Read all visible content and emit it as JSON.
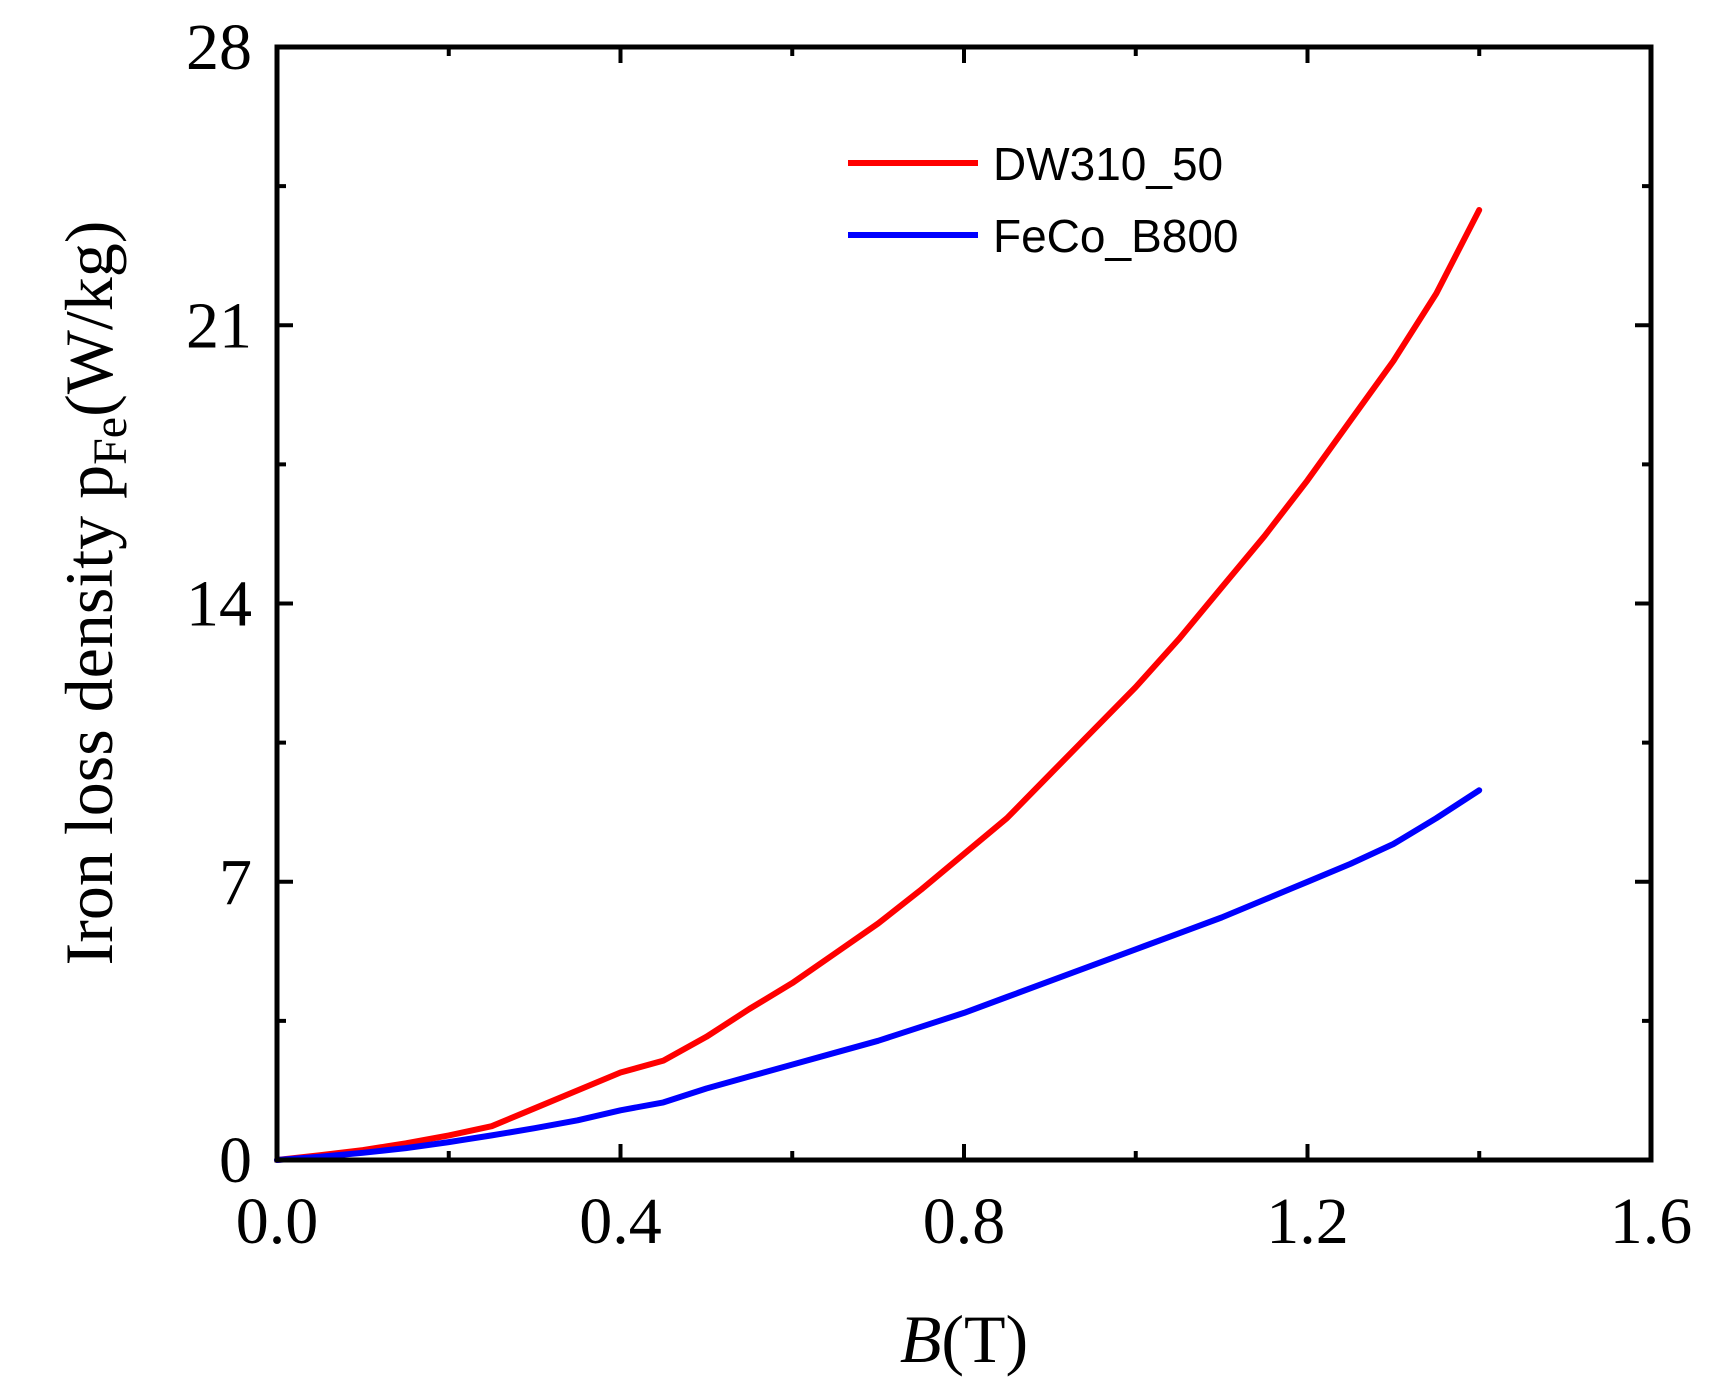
{
  "chart_data": {
    "type": "line",
    "title": "",
    "xlabel": {
      "symbol": "B",
      "unit": "(T)"
    },
    "ylabel": {
      "main": "Iron loss density p",
      "subscript": "Fe",
      "unit": "(W/kg)"
    },
    "xlim": [
      0.0,
      1.6
    ],
    "ylim": [
      0,
      28
    ],
    "x_ticks": [
      "0.0",
      "0.4",
      "0.8",
      "1.2",
      "1.6"
    ],
    "x_tick_values": [
      0.0,
      0.4,
      0.8,
      1.2,
      1.6
    ],
    "x_minor_ticks": [
      0.2,
      0.6,
      1.0,
      1.4
    ],
    "y_ticks": [
      "0",
      "7",
      "14",
      "21",
      "28"
    ],
    "y_tick_values": [
      0,
      7,
      14,
      21,
      28
    ],
    "y_minor_ticks": [
      3.5,
      10.5,
      17.5,
      24.5
    ],
    "grid": false,
    "legend_position": "top-right",
    "series": [
      {
        "name": "DW310_50",
        "color": "#ff0000",
        "x": [
          0.0,
          0.05,
          0.1,
          0.15,
          0.2,
          0.25,
          0.3,
          0.35,
          0.4,
          0.45,
          0.5,
          0.55,
          0.6,
          0.65,
          0.7,
          0.75,
          0.8,
          0.85,
          0.9,
          0.95,
          1.0,
          1.05,
          1.1,
          1.15,
          1.2,
          1.25,
          1.3,
          1.35,
          1.4
        ],
        "y": [
          0.0,
          0.12,
          0.25,
          0.42,
          0.62,
          0.85,
          1.3,
          1.75,
          2.2,
          2.5,
          3.1,
          3.8,
          4.45,
          5.2,
          5.95,
          6.8,
          7.7,
          8.6,
          9.7,
          10.8,
          11.9,
          13.1,
          14.4,
          15.7,
          17.1,
          18.6,
          20.1,
          21.8,
          23.9
        ]
      },
      {
        "name": "FeCo_B800",
        "color": "#0000ff",
        "x": [
          0.0,
          0.05,
          0.1,
          0.15,
          0.2,
          0.25,
          0.3,
          0.35,
          0.4,
          0.45,
          0.5,
          0.55,
          0.6,
          0.65,
          0.7,
          0.75,
          0.8,
          0.85,
          0.9,
          0.95,
          1.0,
          1.05,
          1.1,
          1.15,
          1.2,
          1.25,
          1.3,
          1.35,
          1.4
        ],
        "y": [
          0.0,
          0.08,
          0.18,
          0.3,
          0.45,
          0.62,
          0.8,
          1.0,
          1.25,
          1.45,
          1.8,
          2.1,
          2.4,
          2.7,
          3.0,
          3.35,
          3.7,
          4.1,
          4.5,
          4.9,
          5.3,
          5.7,
          6.1,
          6.55,
          7.0,
          7.45,
          7.95,
          8.6,
          9.3
        ]
      }
    ]
  }
}
